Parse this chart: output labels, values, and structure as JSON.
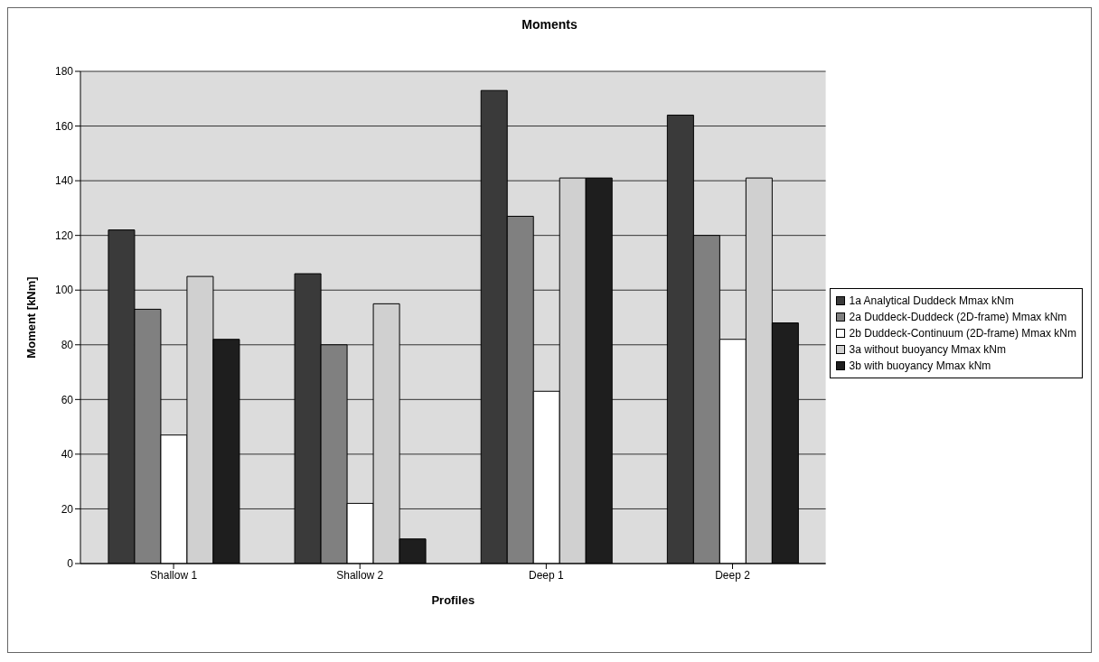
{
  "chart_data": {
    "type": "bar",
    "title": "Moments",
    "xlabel": "Profiles",
    "ylabel": "Moment [kNm]",
    "categories": [
      "Shallow 1",
      "Shallow 2",
      "Deep 1",
      "Deep 2"
    ],
    "series": [
      {
        "name": "1a  Analytical Duddeck Mmax kNm",
        "color": "#3a3a3a",
        "values": [
          122,
          106,
          173,
          164
        ]
      },
      {
        "name": "2a Duddeck-Duddeck (2D-frame) Mmax kNm",
        "color": "#808080",
        "values": [
          93,
          80,
          127,
          120
        ]
      },
      {
        "name": "2b Duddeck-Continuum (2D-frame) Mmax kNm",
        "color": "#ffffff",
        "values": [
          47,
          22,
          63,
          82
        ]
      },
      {
        "name": "3a without buoyancy Mmax kNm",
        "color": "#d0d0d0",
        "values": [
          105,
          95,
          141,
          141
        ]
      },
      {
        "name": "3b with buoyancy Mmax kNm",
        "color": "#1e1e1e",
        "values": [
          82,
          9,
          141,
          88
        ]
      }
    ],
    "ylim": [
      0,
      180
    ],
    "yticks": [
      0,
      20,
      40,
      60,
      80,
      100,
      120,
      140,
      160,
      180
    ],
    "grid": "y",
    "legend": "right"
  }
}
